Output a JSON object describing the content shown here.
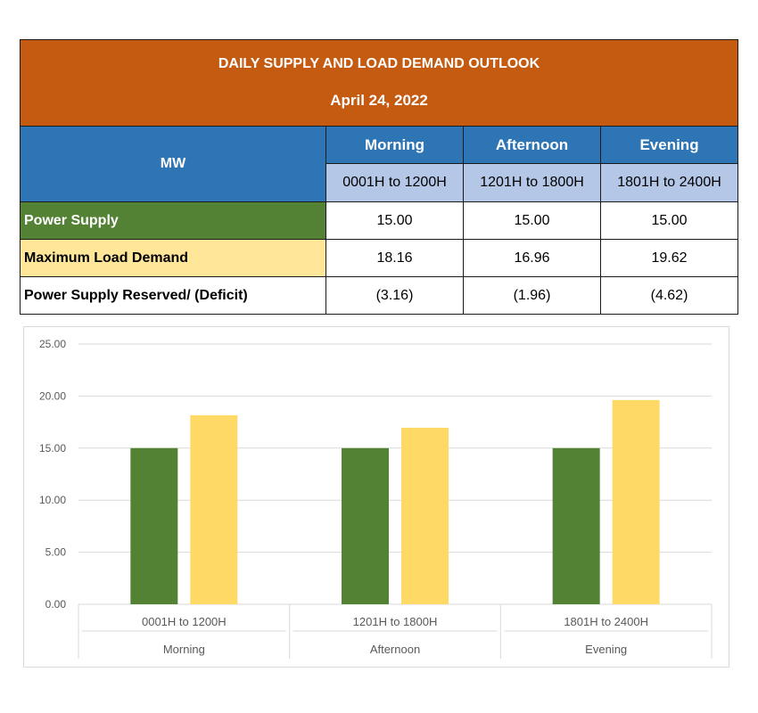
{
  "table": {
    "title": "DAILY SUPPLY AND LOAD DEMAND OUTLOOK",
    "date": "April 24, 2022",
    "unit_label": "MW",
    "periods": [
      {
        "name": "Morning",
        "range": "0001H to 1200H"
      },
      {
        "name": "Afternoon",
        "range": "1201H to 1800H"
      },
      {
        "name": "Evening",
        "range": "1801H to 2400H"
      }
    ],
    "rows": [
      {
        "label": "Power Supply",
        "values": [
          "15.00",
          "15.00",
          "15.00"
        ]
      },
      {
        "label": "Maximum Load Demand",
        "values": [
          "18.16",
          "16.96",
          "19.62"
        ]
      },
      {
        "label": "Power Supply Reserved/ (Deficit)",
        "values": [
          "(3.16)",
          "(1.96)",
          "(4.62)"
        ]
      }
    ]
  },
  "chart_data": {
    "type": "bar",
    "title": "",
    "xlabel": "",
    "ylabel": "",
    "categories": [
      [
        "0001H to 1200H",
        "Morning"
      ],
      [
        "1201H to 1800H",
        "Afternoon"
      ],
      [
        "1801H to 2400H",
        "Evening"
      ]
    ],
    "series": [
      {
        "values": [
          15.0,
          15.0,
          15.0
        ],
        "color": "#548235"
      },
      {
        "values": [
          18.16,
          16.96,
          19.62
        ],
        "color": "#ffd966"
      }
    ],
    "ylim": [
      0,
      25
    ],
    "yticks": [
      "0.00",
      "5.00",
      "10.00",
      "15.00",
      "20.00",
      "25.00"
    ],
    "grid": true,
    "legend": "none",
    "grid_color": "#d9d9d9"
  }
}
